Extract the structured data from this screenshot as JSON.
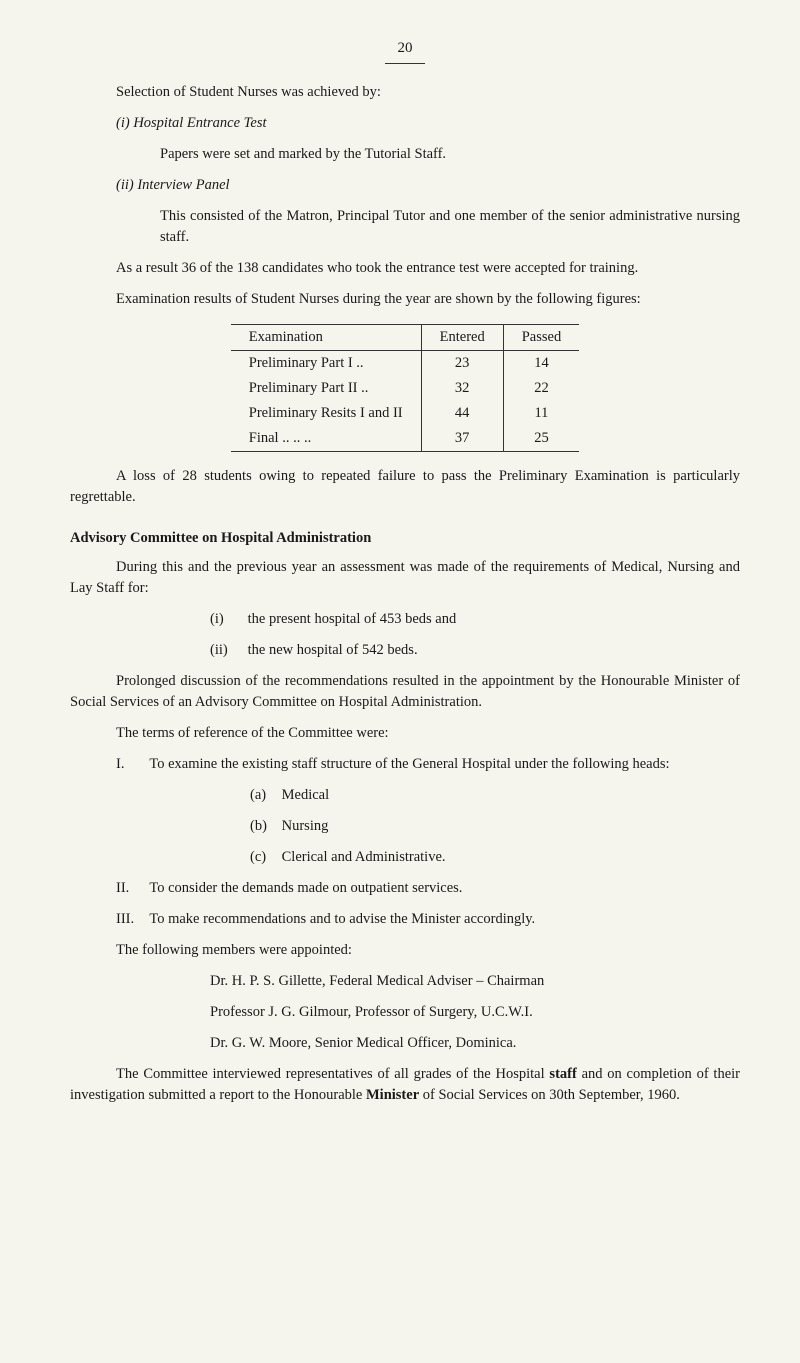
{
  "page_number": "20",
  "p1": "Selection of Student Nurses was achieved by:",
  "item_i_marker": "(i)",
  "item_i_title": "Hospital Entrance Test",
  "item_i_body": "Papers were set and marked by the Tutorial Staff.",
  "item_ii_marker": "(ii)",
  "item_ii_title": "Interview Panel",
  "item_ii_body": "This consisted of the Matron, Principal Tutor and one member of the senior administrative nursing staff.",
  "p2": "As a result 36 of the 138 candidates who took the entrance test were accepted for training.",
  "p3": "Examination results of Student Nurses during the year are shown by the following figures:",
  "table": {
    "headers": [
      "Examination",
      "Entered",
      "Passed"
    ],
    "rows": [
      [
        "Preliminary Part I    ..",
        "23",
        "14"
      ],
      [
        "Preliminary Part II   ..",
        "32",
        "22"
      ],
      [
        "Preliminary Resits I and II",
        "44",
        "11"
      ],
      [
        "Final  ..      ..      ..",
        "37",
        "25"
      ]
    ]
  },
  "p4": "A loss of 28 students owing to repeated failure to pass the Preliminary Examination is particularly regrettable.",
  "heading1": "Advisory Committee on Hospital Administration",
  "p5": "During this and the previous year an assessment was made of the requirements of Medical, Nursing and Lay Staff for:",
  "sub_i_marker": "(i)",
  "sub_i": "the present hospital of 453 beds and",
  "sub_ii_marker": "(ii)",
  "sub_ii": "the new hospital of 542 beds.",
  "p6": "Prolonged discussion of the recommendations resulted in the appointment by the Honourable Minister of Social Services of an Advisory Committee on Hospital Administration.",
  "p7": "The terms of reference of the Committee were:",
  "term_I_marker": "I.",
  "term_I": "To examine the existing staff structure of the General Hospital under the following heads:",
  "head_a_marker": "(a)",
  "head_a": "Medical",
  "head_b_marker": "(b)",
  "head_b": "Nursing",
  "head_c_marker": "(c)",
  "head_c": "Clerical and Administrative.",
  "term_II_marker": "II.",
  "term_II": "To consider the demands made on outpatient services.",
  "term_III_marker": "III.",
  "term_III": "To make recommendations and to advise the Minister accordingly.",
  "p8": "The following members were appointed:",
  "member1": "Dr. H. P. S. Gillette, Federal Medical Adviser – Chairman",
  "member2": "Professor J. G. Gilmour, Professor of Surgery, U.C.W.I.",
  "member3": "Dr. G. W. Moore, Senior Medical Officer, Dominica.",
  "p9a": "The Committee interviewed representatives of all grades of the Hospital ",
  "p9_staff": "staff",
  "p9b": " and on completion of their investigation submitted a report to the Honourable ",
  "p9_minister": "Minister",
  "p9c": " of Social Services on 30th September, 1960."
}
